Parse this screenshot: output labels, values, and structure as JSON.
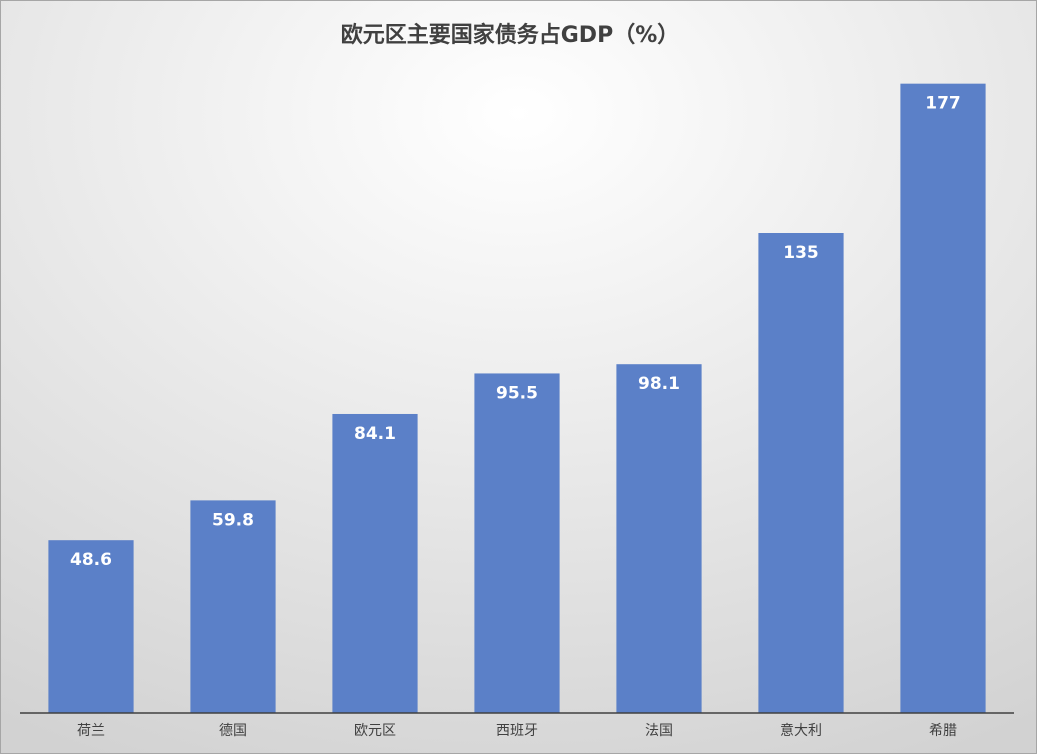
{
  "chart_data": {
    "type": "bar",
    "title": "欧元区主要国家债务占GDP（%）",
    "categories": [
      "荷兰",
      "德国",
      "欧元区",
      "西班牙",
      "法国",
      "意大利",
      "希腊"
    ],
    "values": [
      48.6,
      59.8,
      84.1,
      95.5,
      98.1,
      135,
      177
    ],
    "color": "#5b80c8",
    "ylim": [
      0,
      180
    ]
  }
}
